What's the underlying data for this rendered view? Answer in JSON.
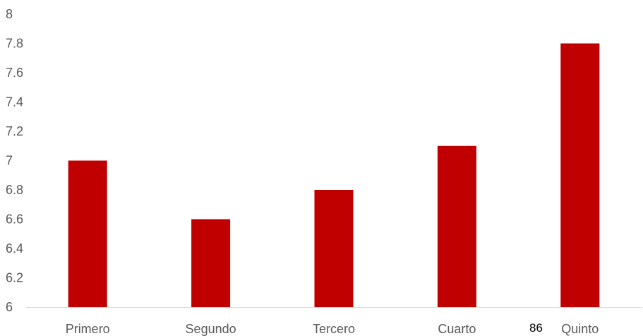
{
  "chart_data": {
    "type": "bar",
    "categories": [
      "Primero",
      "Segundo",
      "Tercero",
      "Cuarto",
      "Quinto"
    ],
    "values": [
      7.0,
      6.6,
      6.8,
      7.1,
      7.8
    ],
    "ylim": [
      6,
      8
    ],
    "yticks": [
      "6",
      "6.2",
      "6.4",
      "6.6",
      "6.8",
      "7",
      "7.2",
      "7.4",
      "7.6",
      "7.8",
      "8"
    ],
    "grid": false,
    "legend": "none",
    "colors": {
      "bar": "#C00000",
      "axis_line": "#D9D9D9",
      "tick_text": "#595959"
    }
  },
  "page_number": "86"
}
